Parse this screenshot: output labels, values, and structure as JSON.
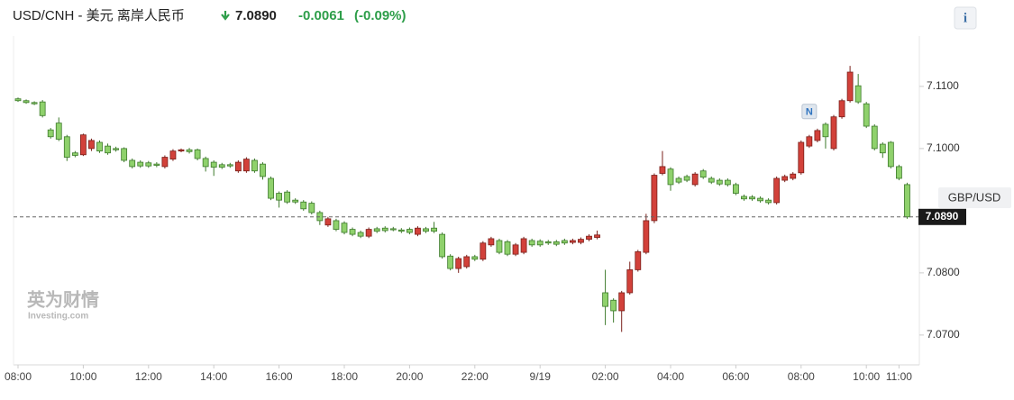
{
  "chart_data": {
    "type": "candlestick",
    "title": "USD/CNH - 美元 离岸人民币",
    "price": "7.0890",
    "change": "-0.0061",
    "change_percent": "(-0.09%)",
    "info_button": "i",
    "watermark": {
      "brand": "英为财情",
      "site": "Investing.com"
    },
    "compare_tag": "GBP/USD",
    "annotation": {
      "label": "N",
      "index": 97
    },
    "last_price": {
      "value": 7.089,
      "label": "7.0890"
    },
    "up_color": "#d2413a",
    "down_color": "#8fd16c",
    "categories": [
      "08:00",
      null,
      null,
      null,
      null,
      null,
      null,
      null,
      "10:00",
      null,
      null,
      null,
      null,
      null,
      null,
      null,
      "12:00",
      null,
      null,
      null,
      null,
      null,
      null,
      null,
      "14:00",
      null,
      null,
      null,
      null,
      null,
      null,
      null,
      "16:00",
      null,
      null,
      null,
      null,
      null,
      null,
      null,
      "18:00",
      null,
      null,
      null,
      null,
      null,
      null,
      null,
      "20:00",
      null,
      null,
      null,
      null,
      null,
      null,
      null,
      "22:00",
      null,
      null,
      null,
      null,
      null,
      null,
      null,
      "9/19",
      null,
      null,
      null,
      null,
      null,
      null,
      null,
      "02:00",
      null,
      null,
      null,
      null,
      null,
      null,
      null,
      "04:00",
      null,
      null,
      null,
      null,
      null,
      null,
      null,
      "06:00",
      null,
      null,
      null,
      null,
      null,
      null,
      null,
      "08:00",
      null,
      null,
      null,
      null,
      null,
      null,
      null,
      "10:00",
      null,
      null,
      null,
      "11:00",
      null
    ],
    "open": [
      7.108,
      7.1077,
      7.1074,
      7.1075,
      7.103,
      7.1041,
      7.1019,
      7.0993,
      7.099,
      7.1,
      7.101,
      7.1004,
      7.1,
      7.1,
      7.0981,
      7.0978,
      7.0977,
      7.0975,
      7.0971,
      7.0983,
      7.0996,
      7.0998,
      7.0998,
      7.0984,
      7.0978,
      7.0974,
      7.0974,
      7.0964,
      7.0964,
      7.0981,
      7.0975,
      7.0952,
      7.0928,
      7.093,
      7.0917,
      7.0914,
      7.0912,
      7.0897,
      7.0877,
      7.0884,
      7.088,
      7.087,
      7.0865,
      7.0859,
      7.0871,
      7.0872,
      7.0871,
      7.0869,
      7.087,
      7.0862,
      7.0871,
      7.0872,
      7.0862,
      7.0827,
      7.0807,
      7.081,
      7.0826,
      7.0822,
      7.0845,
      7.0852,
      7.085,
      7.083,
      7.0833,
      7.0852,
      7.0851,
      7.085,
      7.085,
      7.0852,
      7.0849,
      7.0849,
      7.0854,
      7.0857,
      7.0768,
      7.0756,
      7.0739,
      7.0768,
      7.0805,
      7.0833,
      7.0884,
      7.096,
      7.0967,
      7.0952,
      7.0955,
      7.0942,
      7.0964,
      7.0952,
      7.0949,
      7.0949,
      7.0942,
      7.0923,
      7.0922,
      7.092,
      7.0917,
      7.0913,
      7.0949,
      7.0952,
      7.0961,
      7.1004,
      7.1013,
      7.1039,
      7.1,
      7.1051,
      7.1077,
      7.1101,
      7.1072,
      7.1036,
      7.1007,
      7.101,
      7.0971,
      7.0942
    ],
    "high": [
      7.1082,
      7.1079,
      7.1076,
      7.1078,
      7.1033,
      7.105,
      7.1022,
      7.0996,
      7.1024,
      7.1016,
      7.1013,
      7.1008,
      7.1003,
      7.1002,
      7.0984,
      7.0981,
      7.098,
      7.0978,
      7.0989,
      7.0999,
      7.1,
      7.1001,
      7.1,
      7.0987,
      7.0981,
      7.0977,
      7.0977,
      7.0981,
      7.0986,
      7.0984,
      7.0978,
      7.0955,
      7.0931,
      7.0933,
      7.092,
      7.0917,
      7.0915,
      7.09,
      7.089,
      7.0887,
      7.0883,
      7.0873,
      7.0868,
      7.0873,
      7.0874,
      7.0875,
      7.0874,
      7.0872,
      7.0873,
      7.0875,
      7.0874,
      7.0882,
      7.0865,
      7.083,
      7.0826,
      7.0829,
      7.0829,
      7.0851,
      7.0858,
      7.0855,
      7.0853,
      7.0848,
      7.0858,
      7.0855,
      7.0854,
      7.0853,
      7.0853,
      7.0855,
      7.0855,
      7.0857,
      7.0862,
      7.0868,
      7.0805,
      7.0759,
      7.0771,
      7.0818,
      7.0837,
      7.0895,
      7.096,
      7.0996,
      7.097,
      7.0955,
      7.0958,
      7.0962,
      7.0967,
      7.0955,
      7.0952,
      7.0952,
      7.0945,
      7.0926,
      7.0925,
      7.0923,
      7.092,
      7.0955,
      7.0958,
      7.0962,
      7.1013,
      7.1022,
      7.1032,
      7.1042,
      7.1054,
      7.108,
      7.1133,
      7.112,
      7.1075,
      7.1039,
      7.101,
      7.1012,
      7.0974,
      7.0945
    ],
    "low": [
      7.1075,
      7.1072,
      7.107,
      7.105,
      7.1016,
      7.1012,
      7.098,
      7.0986,
      7.0988,
      7.0996,
      7.0993,
      7.099,
      7.0995,
      7.0978,
      7.0968,
      7.0969,
      7.0969,
      7.097,
      7.0968,
      7.098,
      7.0994,
      7.0992,
      7.0981,
      7.0963,
      7.0956,
      7.0967,
      7.0969,
      7.0961,
      7.0961,
      7.0961,
      7.095,
      7.0917,
      7.0905,
      7.0911,
      7.0911,
      7.09,
      7.0894,
      7.0877,
      7.0874,
      7.0867,
      7.0862,
      7.0859,
      7.0856,
      7.0856,
      7.0864,
      7.0865,
      7.0867,
      7.0864,
      7.0862,
      7.0859,
      7.0864,
      7.0864,
      7.0823,
      7.0804,
      7.08,
      7.0807,
      7.0819,
      7.0819,
      7.0842,
      7.083,
      7.0827,
      7.0827,
      7.083,
      7.0842,
      7.0842,
      7.0845,
      7.0843,
      7.0845,
      7.0846,
      7.0846,
      7.0851,
      7.0854,
      7.0716,
      7.072,
      7.0705,
      7.0765,
      7.0802,
      7.083,
      7.088,
      7.0957,
      7.0932,
      7.0943,
      7.0946,
      7.0939,
      7.0951,
      7.0943,
      7.094,
      7.0939,
      7.0925,
      7.0916,
      7.0916,
      7.0913,
      7.091,
      7.091,
      7.0946,
      7.0949,
      7.0958,
      7.1001,
      7.101,
      7.1,
      7.0997,
      7.1048,
      7.1074,
      7.1072,
      7.1033,
      7.0997,
      7.0985,
      7.0968,
      7.0949,
      7.0887
    ],
    "close": [
      7.1077,
      7.1074,
      7.1072,
      7.1053,
      7.1019,
      7.1015,
      7.0986,
      7.0989,
      7.1022,
      7.1013,
      7.0996,
      7.0993,
      7.0998,
      7.0981,
      7.0971,
      7.0972,
      7.0972,
      7.0973,
      7.0986,
      7.0996,
      7.0998,
      7.0995,
      7.0984,
      7.0971,
      7.097,
      7.097,
      7.0972,
      7.0978,
      7.0983,
      7.0964,
      7.0955,
      7.092,
      7.0917,
      7.0914,
      7.0914,
      7.0903,
      7.0897,
      7.0884,
      7.0887,
      7.087,
      7.0865,
      7.0862,
      7.0859,
      7.087,
      7.0867,
      7.0868,
      7.087,
      7.0867,
      7.0865,
      7.0872,
      7.0867,
      7.0867,
      7.0826,
      7.0807,
      7.0823,
      7.0826,
      7.0822,
      7.0848,
      7.0855,
      7.0833,
      7.083,
      7.0845,
      7.0855,
      7.0845,
      7.0845,
      7.0848,
      7.0846,
      7.0848,
      7.0852,
      7.0854,
      7.0859,
      7.0861,
      7.0746,
      7.0739,
      7.0768,
      7.0805,
      7.0834,
      7.0884,
      7.0957,
      7.0971,
      7.0942,
      7.0946,
      7.0949,
      7.0959,
      7.0954,
      7.0946,
      7.0943,
      7.0942,
      7.0928,
      7.0919,
      7.0919,
      7.0916,
      7.0913,
      7.0952,
      7.0955,
      7.0959,
      7.101,
      7.1019,
      7.1029,
      7.1019,
      7.1051,
      7.1077,
      7.1123,
      7.1075,
      7.1036,
      7.1,
      7.0993,
      7.0971,
      7.0952,
      7.089
    ],
    "ylim": [
      7.0652,
      7.1181
    ],
    "yticks": [
      {
        "value": 7.07,
        "label": "7.0700"
      },
      {
        "value": 7.08,
        "label": "7.0800"
      },
      {
        "value": 7.1,
        "label": "7.1000"
      },
      {
        "value": 7.11,
        "label": "7.1100"
      }
    ]
  }
}
